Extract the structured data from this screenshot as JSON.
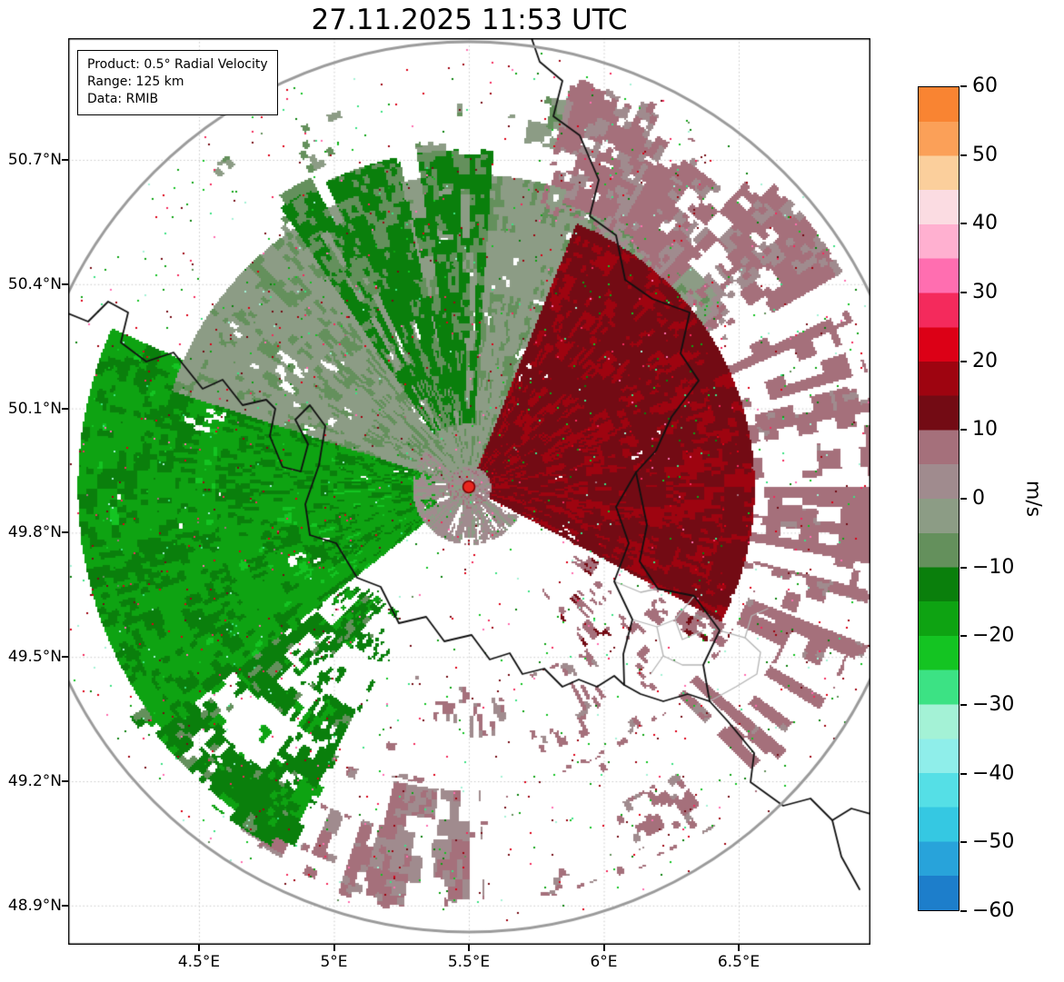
{
  "title": "27.11.2025 11:53 UTC",
  "info_box": {
    "lines": [
      "Product: 0.5° Radial Velocity",
      "Range: 125 km",
      "Data: RMIB"
    ]
  },
  "chart_data": {
    "type": "heatmap",
    "title": "27.11.2025 11:53 UTC",
    "description": "Doppler weather radar 0.5 degree elevation radial velocity scan (RMIB), 125 km range, centered near 5.5E / 49.9N (Belgian Ardennes). Negative velocities (green, toward radar) dominate the west and southwest sectors; positive velocities (dark red / mauve, away from radar) dominate the east and northeast, indicating broadly westerly flow. Clear (white) sector to the south, scattered mauve echoes far south, radial mauve streaks to the east reaching the range ring.",
    "grid": "dotted",
    "radar": {
      "site_lon": 5.5,
      "site_lat": 49.91,
      "range_km": 125,
      "marker_color": "#e8261f",
      "marker_edge_color": "#7a0000",
      "range_ring_color": "#9b9b9b"
    },
    "x_axis": {
      "ticks": [
        {
          "v": 4.5,
          "label": "4.5°E"
        },
        {
          "v": 5.0,
          "label": "5°E"
        },
        {
          "v": 5.5,
          "label": "5.5°E"
        },
        {
          "v": 6.0,
          "label": "6°E"
        },
        {
          "v": 6.5,
          "label": "6.5°E"
        }
      ]
    },
    "y_axis": {
      "ticks": [
        {
          "v": 50.7,
          "label": "50.7°N"
        },
        {
          "v": 50.4,
          "label": "50.4°N"
        },
        {
          "v": 50.1,
          "label": "50.1°N"
        },
        {
          "v": 49.8,
          "label": "49.8°N"
        },
        {
          "v": 49.5,
          "label": "49.5°N"
        },
        {
          "v": 49.2,
          "label": "49.2°N"
        },
        {
          "v": 48.9,
          "label": "48.9°N"
        }
      ]
    },
    "colorbar": {
      "label": "m/s",
      "min": -60,
      "max": 60,
      "ticks": [
        {
          "v": 60,
          "label": "60"
        },
        {
          "v": 50,
          "label": "50"
        },
        {
          "v": 40,
          "label": "40"
        },
        {
          "v": 30,
          "label": "30"
        },
        {
          "v": 20,
          "label": "20"
        },
        {
          "v": 10,
          "label": "10"
        },
        {
          "v": 0,
          "label": "0"
        },
        {
          "v": -10,
          "label": "−10"
        },
        {
          "v": -20,
          "label": "−20"
        },
        {
          "v": -30,
          "label": "−30"
        },
        {
          "v": -40,
          "label": "−40"
        },
        {
          "v": -50,
          "label": "−50"
        },
        {
          "v": -60,
          "label": "−60"
        }
      ],
      "bands": [
        {
          "from": -60,
          "to": -55,
          "color": "#1d7ecb"
        },
        {
          "from": -55,
          "to": -50,
          "color": "#28a3da"
        },
        {
          "from": -50,
          "to": -45,
          "color": "#35c8e2"
        },
        {
          "from": -45,
          "to": -40,
          "color": "#55dfe6"
        },
        {
          "from": -40,
          "to": -35,
          "color": "#8feeea"
        },
        {
          "from": -35,
          "to": -30,
          "color": "#a4f2d6"
        },
        {
          "from": -30,
          "to": -25,
          "color": "#3ce284"
        },
        {
          "from": -25,
          "to": -20,
          "color": "#14c422"
        },
        {
          "from": -20,
          "to": -15,
          "color": "#0ea312"
        },
        {
          "from": -15,
          "to": -10,
          "color": "#0a7f0c"
        },
        {
          "from": -10,
          "to": -5,
          "color": "#64905c"
        },
        {
          "from": -5,
          "to": 0,
          "color": "#8c9c85"
        },
        {
          "from": 0,
          "to": 5,
          "color": "#a08b8e"
        },
        {
          "from": 5,
          "to": 10,
          "color": "#a5707b"
        },
        {
          "from": 10,
          "to": 15,
          "color": "#730b14"
        },
        {
          "from": 15,
          "to": 20,
          "color": "#9e0410"
        },
        {
          "from": 20,
          "to": 25,
          "color": "#dc0016"
        },
        {
          "from": 25,
          "to": 30,
          "color": "#f42a5c"
        },
        {
          "from": 30,
          "to": 35,
          "color": "#ff6eb0"
        },
        {
          "from": 35,
          "to": 40,
          "color": "#ffb0d0"
        },
        {
          "from": 40,
          "to": 45,
          "color": "#fbdce2"
        },
        {
          "from": 45,
          "to": 50,
          "color": "#fbcf9c"
        },
        {
          "from": 50,
          "to": 55,
          "color": "#fba058"
        },
        {
          "from": 55,
          "to": 60,
          "color": "#f98432"
        }
      ]
    },
    "echo_sectors": [
      {
        "name": "near-radar-clutter",
        "az": [
          0,
          360
        ],
        "r": [
          0,
          6
        ],
        "cov": 0.8,
        "v": 2,
        "spread": 7
      },
      {
        "name": "sw-near-clutter",
        "az": [
          120,
          310
        ],
        "r": [
          4,
          16
        ],
        "cov": 0.65,
        "v": 1,
        "spread": 5
      },
      {
        "name": "east-red-core",
        "az": [
          22,
          118
        ],
        "r": [
          6,
          80
        ],
        "cov": 0.92,
        "v": 14,
        "spread": 4
      },
      {
        "name": "ne-mauve",
        "az": [
          14,
          60
        ],
        "r": [
          80,
          124
        ],
        "cov": 0.55,
        "v": 6,
        "spread": 4
      },
      {
        "name": "e-mauve-streaks",
        "az": [
          60,
          135
        ],
        "r": [
          80,
          124
        ],
        "cov": 0.5,
        "v": 7,
        "spread": 3,
        "streak": true
      },
      {
        "name": "nnw-green-streaks",
        "az": [
          326,
          4
        ],
        "r": [
          18,
          95
        ],
        "cov": 0.7,
        "v": -11,
        "spread": 4,
        "streak": true
      },
      {
        "name": "n-far-sage",
        "az": [
          318,
          14
        ],
        "r": [
          88,
          122
        ],
        "cov": 0.3,
        "v": -5,
        "spread": 4
      },
      {
        "name": "north-sage",
        "az": [
          288,
          55
        ],
        "r": [
          6,
          88
        ],
        "cov": 0.85,
        "v": -4,
        "spread": 3.5
      },
      {
        "name": "west-green",
        "az": [
          232,
          294
        ],
        "r": [
          10,
          110
        ],
        "cov": 0.88,
        "v": -16,
        "spread": 5
      },
      {
        "name": "sw-green",
        "az": [
          206,
          236
        ],
        "r": [
          40,
          115
        ],
        "cov": 0.5,
        "v": -13,
        "spread": 5
      },
      {
        "name": "ssw-mauve-streaks",
        "az": [
          178,
          214
        ],
        "r": [
          85,
          122
        ],
        "cov": 0.45,
        "v": 5,
        "spread": 3,
        "streak": true
      },
      {
        "name": "s-mauve-scatter",
        "az": [
          140,
          206
        ],
        "r": [
          55,
          118
        ],
        "cov": 0.28,
        "v": 6,
        "spread": 3.5
      },
      {
        "name": "se-mauve",
        "az": [
          118,
          145
        ],
        "r": [
          35,
          90
        ],
        "cov": 0.35,
        "v": 8,
        "spread": 4
      }
    ],
    "map_layers": {
      "country_borders": [
        [
          [
            0,
            303
          ],
          [
            22,
            312
          ],
          [
            44,
            290
          ],
          [
            66,
            302
          ],
          [
            58,
            335
          ],
          [
            86,
            356
          ],
          [
            116,
            346
          ],
          [
            148,
            386
          ],
          [
            170,
            376
          ],
          [
            192,
            404
          ],
          [
            218,
            398
          ],
          [
            228,
            408
          ],
          [
            222,
            438
          ],
          [
            236,
            472
          ],
          [
            256,
            477
          ],
          [
            264,
            447
          ],
          [
            250,
            420
          ],
          [
            266,
            404
          ],
          [
            283,
            427
          ],
          [
            276,
            470
          ],
          [
            261,
            513
          ],
          [
            266,
            547
          ],
          [
            295,
            556
          ],
          [
            318,
            594
          ],
          [
            344,
            604
          ],
          [
            364,
            644
          ],
          [
            394,
            637
          ],
          [
            414,
            664
          ],
          [
            444,
            657
          ],
          [
            464,
            684
          ],
          [
            486,
            677
          ],
          [
            500,
            700
          ],
          [
            524,
            694
          ],
          [
            544,
            714
          ],
          [
            562,
            706
          ],
          [
            582,
            714
          ],
          [
            601,
            702
          ],
          [
            612,
            712
          ]
        ],
        [
          [
            510,
            0
          ],
          [
            519,
            26
          ],
          [
            544,
            47
          ],
          [
            534,
            86
          ],
          [
            563,
            107
          ],
          [
            584,
            156
          ],
          [
            574,
            196
          ],
          [
            603,
            217
          ],
          [
            613,
            266
          ],
          [
            643,
            287
          ],
          [
            684,
            302
          ],
          [
            674,
            347
          ],
          [
            694,
            377
          ],
          [
            664,
            417
          ],
          [
            647,
            454
          ],
          [
            625,
            478
          ]
        ],
        [
          [
            625,
            478
          ],
          [
            603,
            516
          ],
          [
            617,
            556
          ],
          [
            601,
            598
          ],
          [
            621,
            640
          ],
          [
            611,
            678
          ],
          [
            612,
            712
          ],
          [
            630,
            722
          ],
          [
            655,
            730
          ],
          [
            682,
            722
          ],
          [
            706,
            730
          ]
        ],
        [
          [
            706,
            730
          ],
          [
            699,
            690
          ],
          [
            717,
            652
          ],
          [
            689,
            614
          ],
          [
            649,
            606
          ],
          [
            629,
            576
          ],
          [
            637,
            536
          ],
          [
            625,
            478
          ]
        ],
        [
          [
            706,
            730
          ],
          [
            726,
            752
          ],
          [
            755,
            787
          ],
          [
            751,
            819
          ],
          [
            787,
            845
          ],
          [
            817,
            837
          ],
          [
            841,
            861
          ],
          [
            851,
            901
          ],
          [
            871,
            937
          ]
        ],
        [
          [
            841,
            861
          ],
          [
            862,
            848
          ],
          [
            883,
            854
          ]
        ]
      ],
      "region_borders": [
        [
          [
            601,
            598
          ],
          [
            630,
            610
          ],
          [
            649,
            606
          ]
        ],
        [
          [
            621,
            640
          ],
          [
            648,
            648
          ],
          [
            668,
            640
          ],
          [
            689,
            614
          ]
        ],
        [
          [
            648,
            648
          ],
          [
            655,
            680
          ],
          [
            641,
            700
          ]
        ],
        [
          [
            655,
            680
          ],
          [
            676,
            690
          ],
          [
            699,
            690
          ]
        ],
        [
          [
            668,
            640
          ],
          [
            676,
            662
          ],
          [
            699,
            652
          ]
        ],
        [
          [
            717,
            652
          ],
          [
            745,
            660
          ],
          [
            762,
            676
          ],
          [
            758,
            700
          ],
          [
            735,
            714
          ],
          [
            706,
            730
          ]
        ],
        [
          [
            745,
            660
          ],
          [
            752,
            636
          ],
          [
            770,
            628
          ]
        ]
      ]
    }
  }
}
